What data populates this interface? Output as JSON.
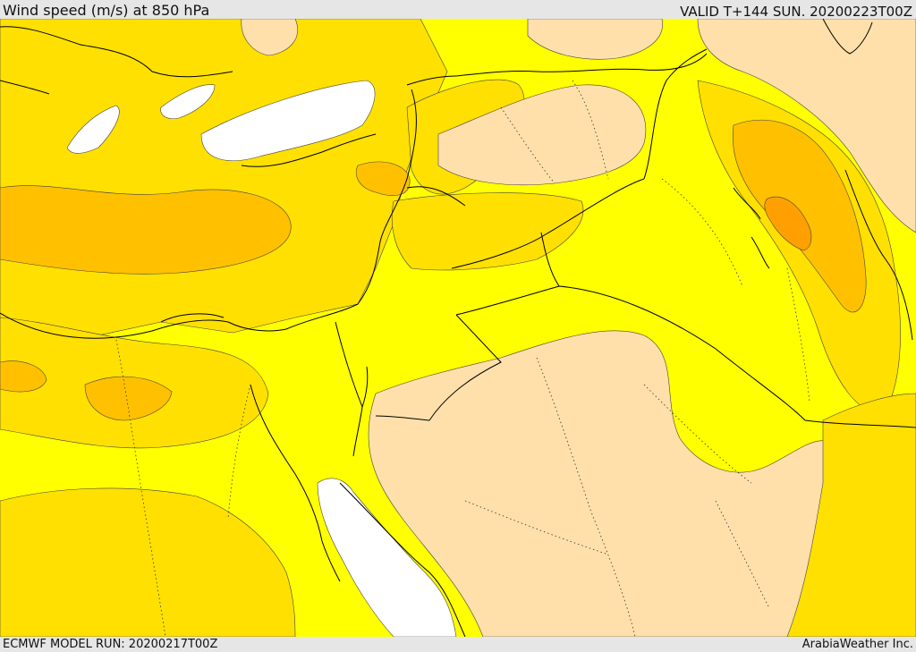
{
  "header": {
    "title": "Wind speed (m/s) at 850 hPa",
    "valid": "VALID T+144 SUN. 20200223T00Z"
  },
  "footer": {
    "model_run": "ECMWF MODEL RUN: 20200217T00Z",
    "credit": "ArabiaWeather Inc."
  },
  "colors": {
    "calm": "#ffffff",
    "band_low": "#ffe0aa",
    "band_1": "#ffff00",
    "band_2": "#ffe000",
    "band_3": "#ffc000",
    "band_4": "#ffa000",
    "borders": "#000000"
  }
}
